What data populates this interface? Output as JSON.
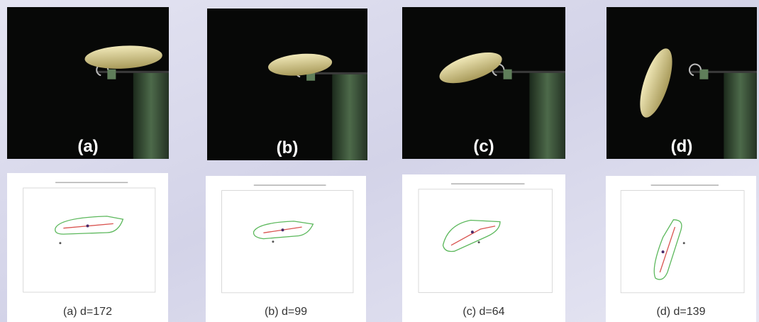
{
  "panels": [
    {
      "photo_label": "(a)",
      "plot_caption": "(a) d=172"
    },
    {
      "photo_label": "(b)",
      "plot_caption": "(b) d=99"
    },
    {
      "photo_label": "(c)",
      "plot_caption": "(c) d=64"
    },
    {
      "photo_label": "(d)",
      "plot_caption": "(d) d=139"
    }
  ]
}
